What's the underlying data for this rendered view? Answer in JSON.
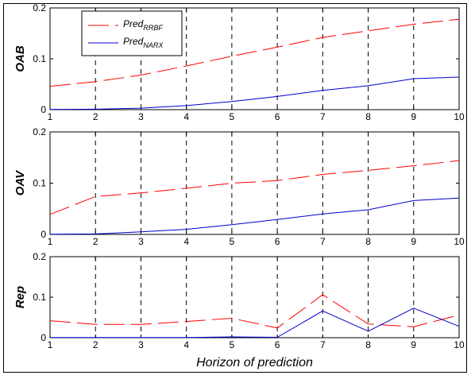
{
  "chart_data": [
    {
      "type": "line",
      "ylabel": "OAB",
      "xlabel": "",
      "x": [
        1,
        2,
        3,
        4,
        5,
        6,
        7,
        8,
        9,
        10
      ],
      "xlim": [
        1,
        10
      ],
      "ylim": [
        0,
        0.2
      ],
      "yticks": [
        "0",
        "0.1",
        "0.2"
      ],
      "xticks": [
        "1",
        "2",
        "3",
        "4",
        "5",
        "6",
        "7",
        "8",
        "9",
        "10"
      ],
      "vertical_dashed_lines_at": [
        2,
        3,
        4,
        5,
        6,
        7,
        8,
        9
      ],
      "legend": {
        "placement": "top-left",
        "entries": [
          {
            "base": "Pred",
            "sub": "RRBF",
            "color": "#ff0000",
            "style": "dashed"
          },
          {
            "base": "Pred",
            "sub": "NARX",
            "color": "#0000cc",
            "style": "solid"
          }
        ]
      },
      "series": [
        {
          "key": "RRBF",
          "color": "#ff0000",
          "style": "dashed",
          "values": [
            0.046,
            0.055,
            0.068,
            0.086,
            0.105,
            0.123,
            0.142,
            0.155,
            0.168,
            0.178
          ]
        },
        {
          "key": "NARX",
          "color": "#0000cc",
          "style": "solid",
          "values": [
            0.0005,
            0.001,
            0.003,
            0.008,
            0.016,
            0.026,
            0.038,
            0.047,
            0.061,
            0.064
          ]
        }
      ]
    },
    {
      "type": "line",
      "ylabel": "OAV",
      "xlabel": "",
      "x": [
        1,
        2,
        3,
        4,
        5,
        6,
        7,
        8,
        9,
        10
      ],
      "xlim": [
        1,
        10
      ],
      "ylim": [
        0,
        0.2
      ],
      "yticks": [
        "0",
        "0.1",
        "0.2"
      ],
      "xticks": [
        "1",
        "2",
        "3",
        "4",
        "5",
        "6",
        "7",
        "8",
        "9",
        "10"
      ],
      "vertical_dashed_lines_at": [
        2,
        3,
        4,
        5,
        6,
        7,
        8,
        9
      ],
      "series": [
        {
          "key": "RRBF",
          "color": "#ff0000",
          "style": "dashed",
          "values": [
            0.039,
            0.074,
            0.081,
            0.09,
            0.1,
            0.105,
            0.117,
            0.125,
            0.134,
            0.144
          ]
        },
        {
          "key": "NARX",
          "color": "#0000cc",
          "style": "solid",
          "values": [
            0.0005,
            0.001,
            0.005,
            0.01,
            0.019,
            0.029,
            0.04,
            0.048,
            0.066,
            0.071
          ]
        }
      ]
    },
    {
      "type": "line",
      "ylabel": "Rep",
      "xlabel": "Horizon of prediction",
      "x": [
        1,
        2,
        3,
        4,
        5,
        6,
        7,
        8,
        9,
        10
      ],
      "xlim": [
        1,
        10
      ],
      "ylim": [
        0,
        0.2
      ],
      "yticks": [
        "0",
        "0.1",
        "0.2"
      ],
      "xticks": [
        "1",
        "2",
        "3",
        "4",
        "5",
        "6",
        "7",
        "8",
        "9",
        "10"
      ],
      "vertical_dashed_lines_at": [
        2,
        3,
        4,
        5,
        6,
        7,
        8,
        9
      ],
      "series": [
        {
          "key": "RRBF",
          "color": "#ff0000",
          "style": "dashed",
          "values": [
            0.042,
            0.033,
            0.033,
            0.04,
            0.048,
            0.024,
            0.106,
            0.034,
            0.027,
            0.056
          ]
        },
        {
          "key": "NARX",
          "color": "#0000cc",
          "style": "solid",
          "values": [
            0.0005,
            0.0005,
            0.0005,
            0.0005,
            0.002,
            0.001,
            0.066,
            0.016,
            0.073,
            0.028
          ]
        }
      ]
    }
  ]
}
